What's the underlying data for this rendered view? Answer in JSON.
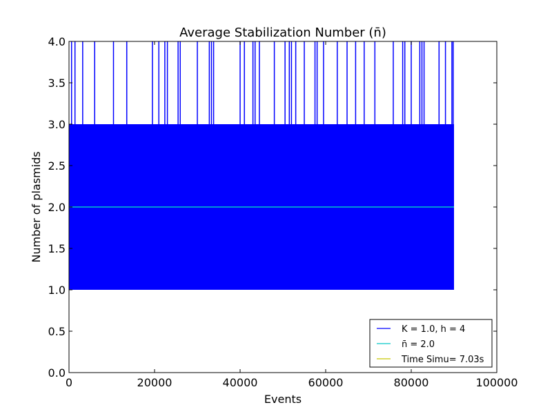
{
  "chart_data": {
    "type": "line",
    "title": "Average Stabilization Number (n̄)",
    "xlabel": "Events",
    "ylabel": "Number of plasmids",
    "xlim": [
      0,
      100000
    ],
    "ylim": [
      0.0,
      4.0
    ],
    "x_ticks": [
      0,
      20000,
      40000,
      60000,
      80000,
      100000
    ],
    "y_ticks": [
      0.0,
      0.5,
      1.0,
      1.5,
      2.0,
      2.5,
      3.0,
      3.5,
      4.0
    ],
    "grid": false,
    "legend_position": "lower-right",
    "series": [
      {
        "name": "K = 1.0, h = 4",
        "color": "#0000ff",
        "description": "number of plasmids per event",
        "x_range": [
          0,
          90000
        ],
        "band_min": 1.0,
        "band_max": 3.0,
        "spike_value": 4.0,
        "spike_x": [
          600,
          1400,
          3200,
          6000,
          10400,
          13500,
          19500,
          21000,
          22400,
          23000,
          25500,
          26000,
          30000,
          32800,
          33300,
          33800,
          40000,
          41000,
          43000,
          43500,
          44500,
          48000,
          50500,
          51500,
          52000,
          53000,
          55000,
          57500,
          58000,
          59500,
          62700,
          65000,
          67000,
          69000,
          71500,
          75800,
          78000,
          78500,
          80000,
          82000,
          82500,
          83000,
          86500,
          88000,
          89500,
          89800
        ]
      },
      {
        "name": "n̄ = 2.0",
        "color": "#00c8c8",
        "x": [
          0,
          90000
        ],
        "y": [
          2.0,
          2.0
        ]
      },
      {
        "name": "Time Simu= 7.03s",
        "color": "#c8c800",
        "x": [],
        "y": []
      }
    ]
  }
}
